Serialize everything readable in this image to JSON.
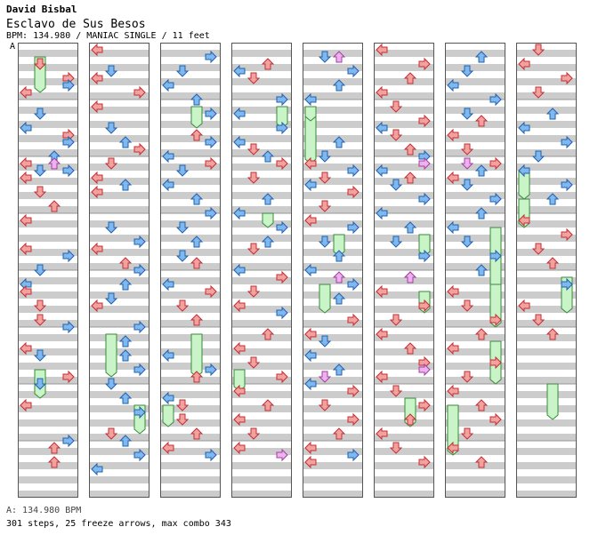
{
  "header": {
    "artist": "David Bisbal",
    "song": "Esclavo de Sus Besos",
    "info": "BPM: 134.980 / MANIAC SINGLE / 11 feet",
    "marker": "A"
  },
  "footer": {
    "bpm_line": "A: 134.980 BPM",
    "stats_line": "301 steps, 25 freeze arrows, max combo 343"
  },
  "chart_data": {
    "type": "step-chart",
    "columns": 8,
    "lanes": [
      "left",
      "down",
      "up",
      "right"
    ],
    "steps": 301,
    "freeze_arrows": 25,
    "max_combo": 343,
    "colors": {
      "quarter": "#f4a0a0",
      "eighth": "#7fb8ec",
      "shock": "#f0b0f0",
      "freeze": "#c8f4c8",
      "stripe": "#cccccc"
    },
    "notes": [
      [
        [
          0,
          2,
          1
        ],
        [
          0,
          4,
          3
        ],
        [
          0,
          5,
          3
        ],
        [
          0,
          6,
          0
        ],
        [
          0,
          9,
          1
        ],
        [
          0,
          11,
          0
        ],
        [
          0,
          12,
          3
        ],
        [
          0,
          13,
          3
        ],
        [
          0,
          15,
          2
        ],
        [
          0,
          16,
          0
        ],
        [
          0,
          17,
          1
        ],
        [
          0,
          17,
          3
        ],
        [
          0,
          18,
          0
        ],
        [
          0,
          20,
          1
        ],
        [
          0,
          22,
          2
        ],
        [
          0,
          24,
          0
        ],
        [
          0,
          28,
          0
        ],
        [
          0,
          29,
          3
        ],
        [
          0,
          31,
          1
        ],
        [
          0,
          33,
          0
        ],
        [
          0,
          34,
          0
        ],
        [
          0,
          36,
          1
        ],
        [
          0,
          38,
          1
        ],
        [
          0,
          39,
          3
        ],
        [
          0,
          42,
          0
        ],
        [
          0,
          43,
          1
        ],
        [
          0,
          46,
          3
        ],
        [
          0,
          47,
          1
        ],
        [
          0,
          50,
          0
        ],
        [
          0,
          55,
          3
        ],
        [
          0,
          56,
          2
        ],
        [
          0,
          58,
          2
        ]
      ],
      [
        [
          1,
          0,
          0
        ],
        [
          1,
          3,
          1
        ],
        [
          1,
          4,
          0
        ],
        [
          1,
          6,
          3
        ],
        [
          1,
          8,
          0
        ],
        [
          1,
          11,
          1
        ],
        [
          1,
          13,
          2
        ],
        [
          1,
          14,
          3
        ],
        [
          1,
          16,
          1
        ],
        [
          1,
          18,
          0
        ],
        [
          1,
          19,
          2
        ],
        [
          1,
          20,
          0
        ],
        [
          1,
          25,
          1
        ],
        [
          1,
          27,
          3
        ],
        [
          1,
          28,
          0
        ],
        [
          1,
          30,
          2
        ],
        [
          1,
          31,
          3
        ],
        [
          1,
          33,
          2
        ],
        [
          1,
          35,
          1
        ],
        [
          1,
          36,
          0
        ],
        [
          1,
          39,
          3
        ],
        [
          1,
          41,
          2
        ],
        [
          1,
          43,
          2
        ],
        [
          1,
          45,
          3
        ],
        [
          1,
          47,
          1
        ],
        [
          1,
          49,
          2
        ],
        [
          1,
          51,
          3
        ],
        [
          1,
          54,
          1
        ],
        [
          1,
          55,
          2
        ],
        [
          1,
          57,
          3
        ],
        [
          1,
          59,
          0
        ]
      ],
      [
        [
          2,
          1,
          3
        ],
        [
          2,
          3,
          1
        ],
        [
          2,
          5,
          0
        ],
        [
          2,
          7,
          2
        ],
        [
          2,
          9,
          3
        ],
        [
          2,
          12,
          2
        ],
        [
          2,
          13,
          3
        ],
        [
          2,
          15,
          0
        ],
        [
          2,
          16,
          3
        ],
        [
          2,
          17,
          1
        ],
        [
          2,
          19,
          0
        ],
        [
          2,
          21,
          2
        ],
        [
          2,
          23,
          3
        ],
        [
          2,
          25,
          1
        ],
        [
          2,
          27,
          2
        ],
        [
          2,
          29,
          1
        ],
        [
          2,
          30,
          2
        ],
        [
          2,
          33,
          0
        ],
        [
          2,
          34,
          3
        ],
        [
          2,
          36,
          1
        ],
        [
          2,
          38,
          2
        ],
        [
          2,
          43,
          0
        ],
        [
          2,
          45,
          3
        ],
        [
          2,
          46,
          2
        ],
        [
          2,
          49,
          0
        ],
        [
          2,
          50,
          1
        ],
        [
          2,
          52,
          1
        ],
        [
          2,
          54,
          2
        ],
        [
          2,
          56,
          0
        ],
        [
          2,
          57,
          3
        ]
      ],
      [
        [
          3,
          2,
          2
        ],
        [
          3,
          3,
          0
        ],
        [
          3,
          4,
          1
        ],
        [
          3,
          7,
          3
        ],
        [
          3,
          9,
          0
        ],
        [
          3,
          11,
          3
        ],
        [
          3,
          13,
          0
        ],
        [
          3,
          14,
          1
        ],
        [
          3,
          15,
          2
        ],
        [
          3,
          16,
          3
        ],
        [
          3,
          18,
          1
        ],
        [
          3,
          21,
          2
        ],
        [
          3,
          23,
          0
        ],
        [
          3,
          25,
          3
        ],
        [
          3,
          27,
          2
        ],
        [
          3,
          28,
          1
        ],
        [
          3,
          31,
          0
        ],
        [
          3,
          32,
          3
        ],
        [
          3,
          34,
          1
        ],
        [
          3,
          36,
          0
        ],
        [
          3,
          37,
          3
        ],
        [
          3,
          40,
          2
        ],
        [
          3,
          42,
          0
        ],
        [
          3,
          44,
          1
        ],
        [
          3,
          46,
          3
        ],
        [
          3,
          48,
          0
        ],
        [
          3,
          50,
          2
        ],
        [
          3,
          52,
          0
        ],
        [
          3,
          54,
          1
        ],
        [
          3,
          56,
          0
        ]
      ],
      [
        [
          4,
          1,
          1
        ],
        [
          4,
          3,
          3
        ],
        [
          4,
          5,
          2
        ],
        [
          4,
          7,
          0
        ],
        [
          4,
          13,
          2
        ],
        [
          4,
          15,
          1
        ],
        [
          4,
          16,
          0
        ],
        [
          4,
          17,
          3
        ],
        [
          4,
          18,
          1
        ],
        [
          4,
          19,
          0
        ],
        [
          4,
          20,
          3
        ],
        [
          4,
          22,
          1
        ],
        [
          4,
          24,
          0
        ],
        [
          4,
          25,
          3
        ],
        [
          4,
          27,
          1
        ],
        [
          4,
          29,
          2
        ],
        [
          4,
          31,
          0
        ],
        [
          4,
          33,
          3
        ],
        [
          4,
          35,
          2
        ],
        [
          4,
          38,
          3
        ],
        [
          4,
          40,
          0
        ],
        [
          4,
          41,
          1
        ],
        [
          4,
          43,
          0
        ],
        [
          4,
          45,
          2
        ],
        [
          4,
          47,
          0
        ],
        [
          4,
          48,
          3
        ],
        [
          4,
          50,
          1
        ],
        [
          4,
          52,
          3
        ],
        [
          4,
          54,
          2
        ],
        [
          4,
          56,
          0
        ],
        [
          4,
          57,
          3
        ],
        [
          4,
          58,
          0
        ]
      ],
      [
        [
          5,
          0,
          0
        ],
        [
          5,
          2,
          3
        ],
        [
          5,
          4,
          2
        ],
        [
          5,
          6,
          0
        ],
        [
          5,
          8,
          1
        ],
        [
          5,
          10,
          3
        ],
        [
          5,
          11,
          0
        ],
        [
          5,
          12,
          1
        ],
        [
          5,
          14,
          2
        ],
        [
          5,
          15,
          3
        ],
        [
          5,
          17,
          0
        ],
        [
          5,
          18,
          2
        ],
        [
          5,
          19,
          1
        ],
        [
          5,
          21,
          3
        ],
        [
          5,
          23,
          0
        ],
        [
          5,
          25,
          2
        ],
        [
          5,
          27,
          1
        ],
        [
          5,
          29,
          3
        ],
        [
          5,
          32,
          2
        ],
        [
          5,
          34,
          0
        ],
        [
          5,
          36,
          3
        ],
        [
          5,
          38,
          1
        ],
        [
          5,
          40,
          0
        ],
        [
          5,
          42,
          2
        ],
        [
          5,
          44,
          3
        ],
        [
          5,
          46,
          0
        ],
        [
          5,
          48,
          1
        ],
        [
          5,
          50,
          3
        ],
        [
          5,
          52,
          2
        ],
        [
          5,
          54,
          0
        ],
        [
          5,
          56,
          1
        ],
        [
          5,
          58,
          3
        ]
      ],
      [
        [
          6,
          1,
          2
        ],
        [
          6,
          3,
          1
        ],
        [
          6,
          5,
          0
        ],
        [
          6,
          7,
          3
        ],
        [
          6,
          9,
          1
        ],
        [
          6,
          10,
          2
        ],
        [
          6,
          12,
          0
        ],
        [
          6,
          14,
          1
        ],
        [
          6,
          16,
          3
        ],
        [
          6,
          17,
          2
        ],
        [
          6,
          18,
          0
        ],
        [
          6,
          19,
          1
        ],
        [
          6,
          21,
          3
        ],
        [
          6,
          23,
          2
        ],
        [
          6,
          25,
          0
        ],
        [
          6,
          27,
          1
        ],
        [
          6,
          29,
          3
        ],
        [
          6,
          31,
          2
        ],
        [
          6,
          34,
          0
        ],
        [
          6,
          36,
          1
        ],
        [
          6,
          38,
          3
        ],
        [
          6,
          40,
          2
        ],
        [
          6,
          42,
          0
        ],
        [
          6,
          44,
          3
        ],
        [
          6,
          46,
          1
        ],
        [
          6,
          48,
          0
        ],
        [
          6,
          50,
          2
        ],
        [
          6,
          52,
          3
        ],
        [
          6,
          54,
          1
        ],
        [
          6,
          56,
          0
        ],
        [
          6,
          58,
          2
        ]
      ],
      [
        [
          7,
          0,
          1
        ],
        [
          7,
          2,
          0
        ],
        [
          7,
          4,
          3
        ],
        [
          7,
          6,
          1
        ],
        [
          7,
          9,
          2
        ],
        [
          7,
          11,
          0
        ],
        [
          7,
          13,
          3
        ],
        [
          7,
          15,
          1
        ],
        [
          7,
          17,
          0
        ],
        [
          7,
          19,
          3
        ],
        [
          7,
          21,
          2
        ],
        [
          7,
          24,
          0
        ],
        [
          7,
          26,
          3
        ],
        [
          7,
          28,
          1
        ],
        [
          7,
          30,
          2
        ],
        [
          7,
          33,
          3
        ],
        [
          7,
          36,
          0
        ],
        [
          7,
          38,
          1
        ],
        [
          7,
          40,
          2
        ]
      ]
    ],
    "freezes": [
      [
        0,
        1,
        5
      ],
      [
        1,
        40,
        6
      ],
      [
        2,
        8,
        3
      ],
      [
        2,
        40,
        6
      ],
      [
        3,
        8,
        3
      ],
      [
        3,
        23,
        2
      ],
      [
        4,
        8,
        8
      ],
      [
        4,
        8,
        2
      ],
      [
        4,
        26,
        3
      ],
      [
        5,
        26,
        3
      ],
      [
        6,
        25,
        9
      ],
      [
        6,
        41,
        6
      ],
      [
        7,
        17,
        4
      ],
      [
        7,
        32,
        5
      ],
      [
        1,
        50,
        4
      ],
      [
        2,
        50,
        3
      ],
      [
        6,
        50,
        7
      ],
      [
        4,
        33,
        4
      ],
      [
        5,
        34,
        3
      ],
      [
        6,
        33,
        6
      ],
      [
        7,
        21,
        4
      ],
      [
        3,
        45,
        3
      ],
      [
        0,
        45,
        4
      ],
      [
        5,
        49,
        4
      ],
      [
        7,
        47,
        5
      ]
    ],
    "shocks": [
      [
        0,
        16,
        2
      ],
      [
        4,
        1,
        2
      ],
      [
        4,
        32,
        2
      ],
      [
        5,
        16,
        3
      ],
      [
        5,
        32,
        2
      ],
      [
        5,
        45,
        3
      ],
      [
        6,
        16,
        1
      ],
      [
        3,
        57,
        3
      ],
      [
        4,
        46,
        1
      ]
    ]
  }
}
